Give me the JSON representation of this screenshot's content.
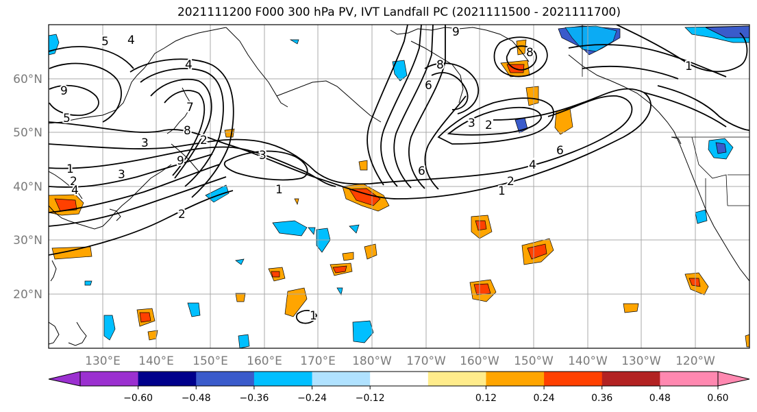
{
  "title": "2021111200 F000 300 hPa PV, IVT Landfall PC (2021111500 - 2021111700)",
  "lat_labels": [
    "20°N",
    "30°N",
    "40°N",
    "50°N",
    "60°N"
  ],
  "lon_labels": [
    "130°E",
    "140°E",
    "150°E",
    "160°E",
    "170°E",
    "180°W",
    "170°W",
    "160°W",
    "150°W",
    "140°W",
    "130°W",
    "120°W"
  ],
  "colorbar": {
    "ticks": [
      "−0.60",
      "−0.48",
      "−0.36",
      "−0.24",
      "−0.12",
      "0.12",
      "0.24",
      "0.36",
      "0.48",
      "0.60"
    ],
    "colors": {
      "under": "#9b30d0",
      "bins": [
        "#9b30d0",
        "#00008b",
        "#3a5bcb",
        "#00bfff",
        "#b0e2ff",
        "#ffffff",
        "#ffec8b",
        "#ffa500",
        "#ff4000",
        "#b22222",
        "#ff88b0"
      ],
      "over": "#ff88b0"
    }
  },
  "contour_labels": [
    "5",
    "4",
    "4",
    "9",
    "5",
    "1",
    "2",
    "4",
    "3",
    "3",
    "7",
    "8",
    "2",
    "9",
    "3",
    "1",
    "2",
    "6",
    "3",
    "2",
    "6",
    "6",
    "4",
    "2",
    "1",
    "1",
    "9",
    "8",
    "1",
    "8"
  ]
}
